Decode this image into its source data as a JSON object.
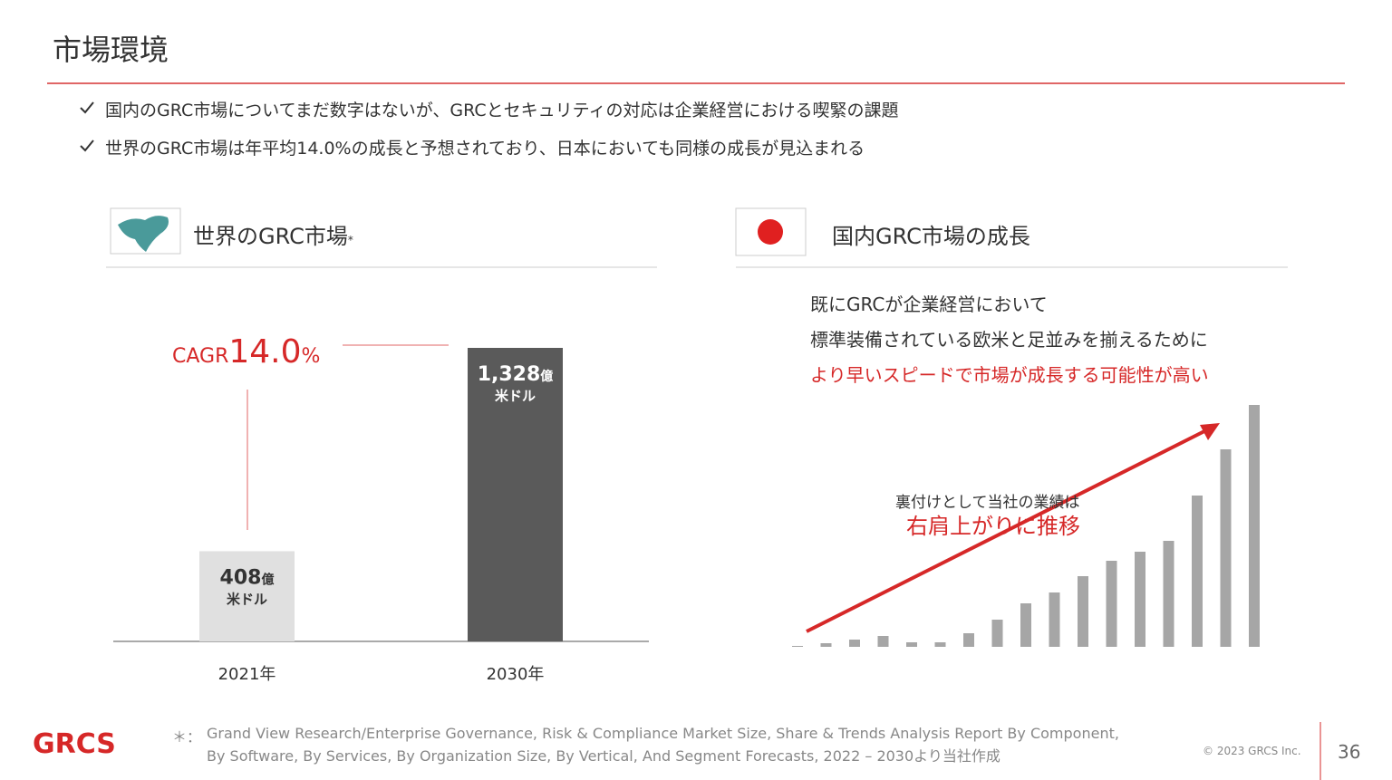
{
  "header": {
    "title": "市場環境"
  },
  "bullets": [
    "国内のGRC市場についてまだ数字はないが、GRCとセキュリティの対応は企業経営における喫緊の課題",
    "世界のGRC市場は年平均14.0%の成長と予想されており、日本においても同様の成長が見込まれる"
  ],
  "left_panel": {
    "title": "世界のGRC市場",
    "mark": "*"
  },
  "right_panel": {
    "title": "国内GRC市場の成長",
    "lines": [
      "既にGRCが企業経営において",
      "標準装備されている欧米と足並みを揃えるために"
    ],
    "highlight": "より早いスピードで市場が成長する可能性が高い",
    "annotation": "裏付けとして当社の業績は",
    "annotation_highlight": "右肩上がりに推移"
  },
  "cagr": {
    "label": "CAGR",
    "value": "14.0",
    "unit": "%"
  },
  "chart_data": [
    {
      "type": "bar",
      "categories": [
        "2021年",
        "2030年"
      ],
      "values": [
        408,
        1328
      ],
      "value_labels": [
        "408",
        "1,328"
      ],
      "value_unit": "億",
      "value_sub": "米ドル",
      "colors": [
        "#e0e0e0",
        "#5a5a5a"
      ],
      "label_colors": [
        "#333333",
        "#ffffff"
      ]
    },
    {
      "type": "bar",
      "categories": [
        null,
        null,
        null,
        null,
        null,
        null,
        null,
        null,
        null,
        null,
        null,
        null,
        null,
        null,
        null,
        null,
        null
      ],
      "values": [
        1,
        4,
        8,
        12,
        5,
        5,
        15,
        30,
        48,
        60,
        78,
        95,
        105,
        117,
        167,
        218,
        267
      ],
      "color": "#a6a6a6"
    }
  ],
  "footer": {
    "logo": "GRCS",
    "note_mark": "＊：",
    "note": [
      "Grand View Research/Enterprise Governance, Risk & Compliance Market Size, Share & Trends Analysis Report By Component,",
      "By Software, By Services, By Organization Size, By Vertical, And Segment Forecasts, 2022 – 2030より当社作成"
    ],
    "copyright": "© 2023 GRCS Inc.",
    "page": "36"
  }
}
